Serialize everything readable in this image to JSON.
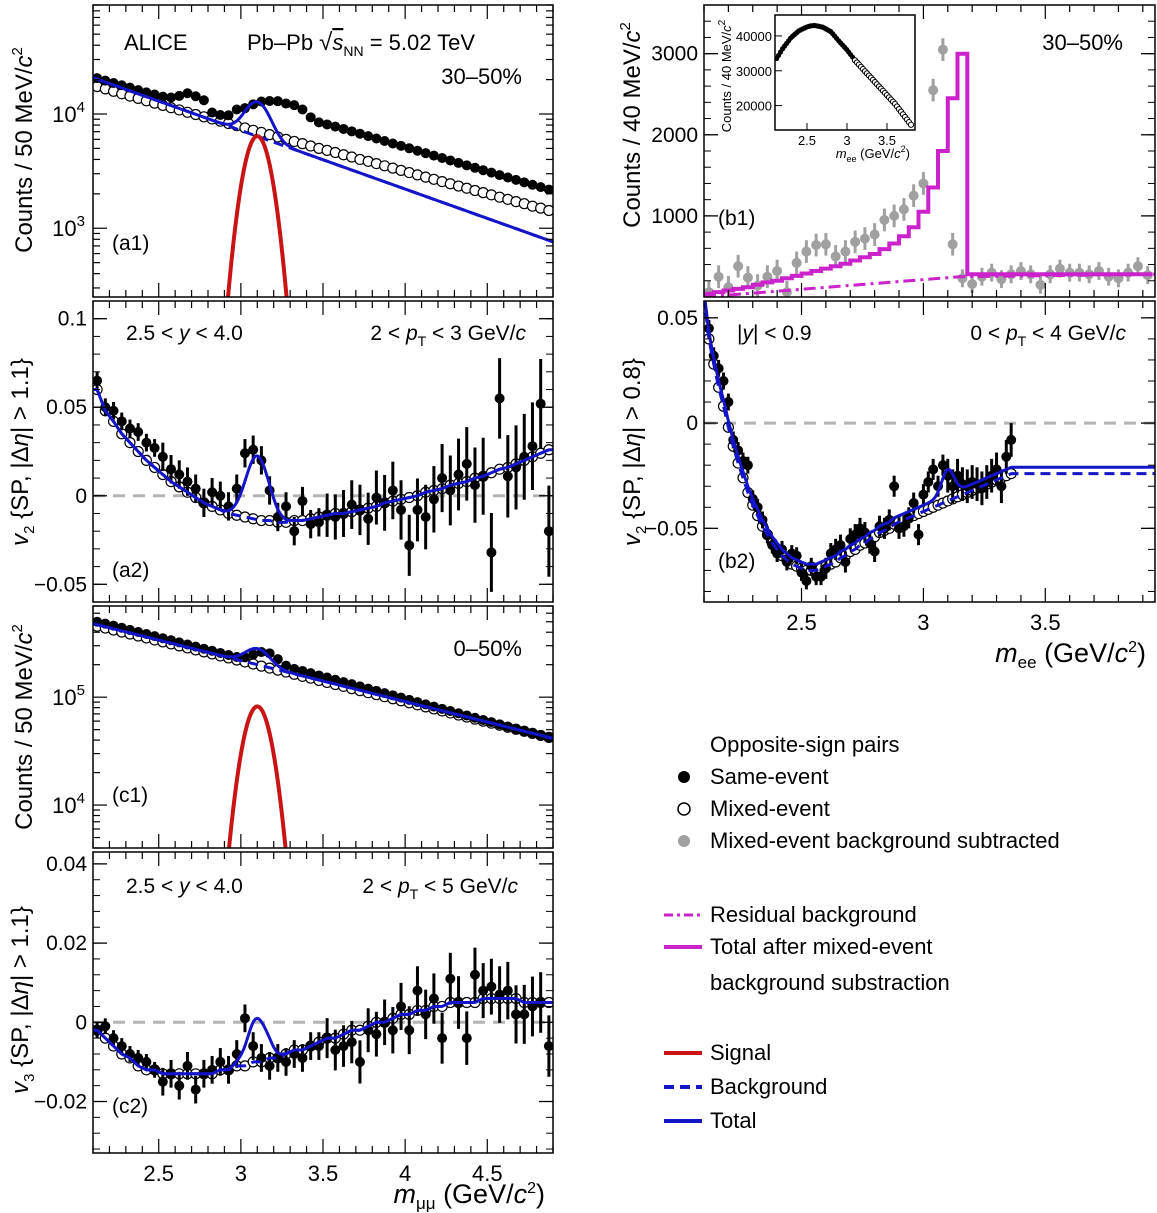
{
  "colors": {
    "signal": "#c81414",
    "background": "#1414c8",
    "total": "#1414c8",
    "magenta": "#cc22cc",
    "gray_points": "#a0a0a0",
    "zero_line": "#b4b4b4"
  },
  "legend": {
    "header": "Opposite-sign pairs",
    "same_event": "Same-event",
    "mixed_event": "Mixed-event",
    "mixed_bkg_sub": "Mixed-event background subtracted",
    "residual_bkg": "Residual background",
    "total_after_line1": "Total after mixed-event",
    "total_after_line2": "background substraction",
    "signal": "Signal",
    "background": "Background",
    "total": "Total"
  },
  "chart_data": [
    {
      "id": "a1",
      "type": "scatter",
      "panel_label": "(a1)",
      "experiment": "ALICE",
      "system": "Pb–Pb",
      "energy_label": "s",
      "energy_sub": "NN",
      "energy_value": "= 5.02 TeV",
      "centrality": "30–50%",
      "ylabel_main": "Counts / 50 MeV/",
      "ylabel_c": "c",
      "ylabel_exp": "2",
      "yscale": "log",
      "ylim": [
        250,
        90000
      ],
      "xlim": [
        2.1,
        4.9
      ],
      "yticks": [
        "10^3",
        "10^4"
      ],
      "same_event": {
        "mass_start": 2.125,
        "mass_step": 0.05,
        "counts": [
          20600,
          19600,
          18700,
          17850,
          17000,
          16200,
          15450,
          14800,
          14200,
          13950,
          14400,
          15200,
          14300,
          13200,
          10300,
          9800,
          9750,
          10950,
          11250,
          12150,
          12850,
          13000,
          12950,
          12350,
          11950,
          10950,
          9350,
          8450,
          8100,
          7750,
          7400,
          7050,
          6720,
          6400,
          6100,
          5800,
          5520,
          5260,
          5010,
          4770,
          4540,
          4320,
          4120,
          3920,
          3730,
          3550,
          3380,
          3220,
          3070,
          2920,
          2780,
          2650,
          2520,
          2400,
          2290,
          2180
        ]
      },
      "mixed_event": {
        "mass_start": 2.125,
        "mass_step": 0.05,
        "counts": [
          17400,
          16600,
          15800,
          15050,
          14350,
          13700,
          13050,
          12450,
          11900,
          11350,
          10850,
          10350,
          9900,
          9450,
          9050,
          8650,
          8250,
          7900,
          7550,
          7200,
          6900,
          6600,
          6300,
          6000,
          5750,
          5500,
          5250,
          5000,
          4800,
          4600,
          4400,
          4200,
          4000,
          3850,
          3680,
          3520,
          3360,
          3210,
          3070,
          2930,
          2800,
          2680,
          2560,
          2450,
          2340,
          2240,
          2140,
          2050,
          1960,
          1870,
          1790,
          1710,
          1640,
          1560,
          1500,
          1430
        ]
      },
      "signal_peak": {
        "mass": 3.1,
        "amplitude": 6400,
        "sigma": 0.07
      },
      "background_endpoints": [
        [
          2.1,
          20800
        ],
        [
          4.9,
          760
        ]
      ]
    },
    {
      "id": "a2",
      "type": "scatter",
      "panel_label": "(a2)",
      "rapidity": "2.5 < y < 4.0",
      "pt_range": "2 < p_T < 3 GeV/c",
      "ylabel": "v_2 {SP, |Δη| > 1.1}",
      "ylim": [
        -0.06,
        0.11
      ],
      "xlim": [
        2.1,
        4.9
      ],
      "yticks": [
        -0.05,
        0,
        0.05,
        0.1
      ],
      "same_event": {
        "mass_start": 2.125,
        "mass_step": 0.05,
        "values": [
          0.065,
          0.05,
          0.048,
          0.042,
          0.038,
          0.036,
          0.03,
          0.027,
          0.022,
          0.015,
          0.012,
          0.008,
          0.004,
          -0.004,
          0.002,
          0.0,
          -0.006,
          0.004,
          0.024,
          0.026,
          0.02,
          0.003,
          -0.012,
          -0.006,
          -0.02,
          -0.003,
          -0.016,
          -0.015,
          -0.011,
          -0.012,
          -0.01,
          -0.005,
          -0.008,
          -0.013,
          -0.001,
          -0.004,
          0.003,
          -0.008,
          -0.028,
          -0.008,
          -0.012,
          -0.002,
          0.01,
          0.003,
          0.012,
          0.018,
          0.006,
          0.011,
          -0.032,
          0.055,
          0.011,
          0.016,
          0.022,
          0.028,
          0.052,
          -0.02
        ]
      },
      "mixed_event": {
        "mass_start": 2.125,
        "mass_step": 0.05,
        "values": [
          0.06,
          0.048,
          0.042,
          0.035,
          0.03,
          0.025,
          0.02,
          0.016,
          0.012,
          0.008,
          0.005,
          0.002,
          -0.001,
          -0.004,
          -0.006,
          -0.008,
          -0.01,
          -0.011,
          -0.012,
          -0.013,
          -0.014,
          -0.014,
          -0.015,
          -0.015,
          -0.014,
          -0.014,
          -0.013,
          -0.012,
          -0.011,
          -0.01,
          -0.01,
          -0.009,
          -0.008,
          -0.007,
          -0.006,
          -0.004,
          -0.003,
          -0.002,
          -0.001,
          0.0,
          0.002,
          0.003,
          0.004,
          0.006,
          0.007,
          0.008,
          0.01,
          0.011,
          0.013,
          0.015,
          0.016,
          0.018,
          0.02,
          0.022,
          0.024,
          0.026
        ]
      },
      "signal_peak": {
        "mass": 3.1,
        "amplitude": 0.036,
        "sigma": 0.07
      }
    },
    {
      "id": "c1",
      "type": "scatter",
      "panel_label": "(c1)",
      "centrality": "0–50%",
      "ylabel_main": "Counts / 50 MeV/",
      "ylabel_c": "c",
      "ylabel_exp": "2",
      "yscale": "log",
      "ylim": [
        4000,
        700000
      ],
      "xlim": [
        2.1,
        4.9
      ],
      "yticks": [
        "10^4",
        "10^5"
      ],
      "same_event": {
        "mass_start": 2.125,
        "mass_step": 0.05,
        "counts": [
          500000,
          480000,
          460000,
          440000,
          420000,
          402000,
          385000,
          368000,
          352000,
          337000,
          322000,
          308000,
          294000,
          281000,
          269000,
          257000,
          246000,
          236000,
          234000,
          248000,
          262000,
          255000,
          225000,
          196000,
          183000,
          175000,
          167000,
          159000,
          152000,
          145000,
          138000,
          132000,
          126000,
          120000,
          114500,
          109000,
          104000,
          99000,
          94500,
          90000,
          85800,
          81800,
          78000,
          74400,
          71000,
          67700,
          64500,
          61500,
          58700,
          56000,
          53400,
          50900,
          48500,
          46300,
          44100,
          42000
        ]
      },
      "mixed_event": {
        "mass_start": 2.125,
        "mass_step": 0.05,
        "counts": [
          455000,
          437000,
          419000,
          402000,
          385000,
          369000,
          354000,
          339000,
          325000,
          312000,
          299000,
          286000,
          274000,
          263000,
          252000,
          241000,
          231000,
          221000,
          212000,
          203000,
          194000,
          186000,
          178000,
          171000,
          163000,
          156000,
          150000,
          143000,
          137000,
          131000,
          126000,
          120000,
          115000,
          110000,
          105500,
          101000,
          96700,
          92600,
          88700,
          84900,
          81300,
          77800,
          74500,
          71400,
          68300,
          65400,
          62600,
          60000,
          57400,
          55000,
          52600,
          50400,
          48300,
          46200,
          44200,
          42400
        ]
      },
      "signal_peak": {
        "mass": 3.1,
        "amplitude": 82000,
        "sigma": 0.07
      },
      "background_endpoints": [
        [
          2.1,
          480000
        ],
        [
          4.9,
          41500
        ]
      ]
    },
    {
      "id": "c2",
      "type": "scatter",
      "panel_label": "(c2)",
      "rapidity": "2.5 < y < 4.0",
      "pt_range": "2 < p_T < 5 GeV/c",
      "ylabel": "v_3 {SP, |Δη| > 1.1}",
      "ylim": [
        -0.033,
        0.043
      ],
      "xlim": [
        2.1,
        4.9
      ],
      "yticks": [
        -0.02,
        0,
        0.02,
        0.04
      ],
      "same_event": {
        "mass_start": 2.125,
        "mass_step": 0.05,
        "values": [
          -0.002,
          -0.001,
          -0.004,
          -0.006,
          -0.008,
          -0.009,
          -0.01,
          -0.012,
          -0.015,
          -0.013,
          -0.016,
          -0.011,
          -0.017,
          -0.013,
          -0.012,
          -0.01,
          -0.012,
          -0.008,
          0.001,
          -0.006,
          -0.009,
          -0.011,
          -0.009,
          -0.01,
          -0.008,
          -0.009,
          -0.006,
          -0.006,
          -0.004,
          -0.007,
          -0.006,
          -0.005,
          -0.01,
          -0.002,
          -0.003,
          0.0,
          -0.002,
          0.004,
          -0.002,
          0.008,
          0.002,
          0.006,
          -0.004,
          0.011,
          0.005,
          -0.004,
          0.012,
          0.008,
          0.009,
          0.007,
          0.008,
          0.002,
          0.002,
          0.004,
          0.005,
          -0.006
        ]
      },
      "mixed_event": {
        "mass_start": 2.125,
        "mass_step": 0.05,
        "values": [
          -0.002,
          -0.004,
          -0.006,
          -0.008,
          -0.009,
          -0.011,
          -0.012,
          -0.012,
          -0.013,
          -0.013,
          -0.013,
          -0.013,
          -0.013,
          -0.013,
          -0.013,
          -0.012,
          -0.012,
          -0.011,
          -0.011,
          -0.01,
          -0.01,
          -0.009,
          -0.009,
          -0.008,
          -0.007,
          -0.007,
          -0.006,
          -0.005,
          -0.004,
          -0.004,
          -0.003,
          -0.002,
          -0.002,
          -0.001,
          0.0,
          0.0,
          0.001,
          0.002,
          0.002,
          0.003,
          0.003,
          0.004,
          0.004,
          0.005,
          0.005,
          0.005,
          0.005,
          0.006,
          0.006,
          0.006,
          0.006,
          0.006,
          0.005,
          0.005,
          0.005,
          0.005
        ]
      },
      "signal_peak": {
        "mass": 3.1,
        "amplitude": 0.011,
        "sigma": 0.06
      }
    },
    {
      "id": "b1",
      "type": "scatter",
      "panel_label": "(b1)",
      "centrality": "30–50%",
      "ylabel_main": "Counts / 40 MeV/",
      "ylabel_c": "c",
      "ylabel_exp": "2",
      "ylim": [
        0,
        3600
      ],
      "xlim": [
        2.1,
        3.95
      ],
      "yticks": [
        1000,
        2000,
        3000
      ],
      "bkg_subtracted": {
        "mass_start": 2.12,
        "mass_step": 0.04,
        "counts": [
          60,
          250,
          120,
          380,
          240,
          140,
          250,
          320,
          60,
          420,
          560,
          640,
          650,
          500,
          560,
          680,
          720,
          770,
          950,
          1000,
          1080,
          1250,
          1400,
          2550,
          3050,
          650,
          230,
          160,
          250,
          300,
          220,
          280,
          320,
          280,
          150,
          280,
          350,
          300,
          300,
          280,
          320,
          250,
          230,
          300,
          380,
          270
        ]
      },
      "total_after_sub": {
        "edges_start": 2.1,
        "edges_step": 0.04,
        "counts": [
          40,
          60,
          80,
          100,
          120,
          150,
          180,
          200,
          230,
          260,
          290,
          320,
          350,
          380,
          410,
          450,
          490,
          530,
          590,
          660,
          750,
          860,
          1050,
          1350,
          1800,
          2450,
          3000,
          280,
          280,
          280,
          280,
          280,
          280,
          280,
          280,
          280,
          280,
          280,
          280,
          280,
          280,
          280,
          280,
          280,
          280,
          280
        ]
      },
      "residual_bkg_endpoints": [
        [
          2.1,
          0
        ],
        [
          3.15,
          250
        ],
        [
          3.95,
          280
        ]
      ],
      "inset": {
        "ylabel_main": "Counts / 40 MeV/",
        "ylabel_c": "c",
        "ylabel_exp": "2",
        "xlabel_main": "m",
        "xlabel_sub": "ee",
        "xlabel_unit": "(GeV/",
        "xlabel_c": "c",
        "xlabel_exp": "2",
        "xlim": [
          2.1,
          3.85
        ],
        "ylim": [
          13000,
          46000
        ],
        "xticks": [
          2.5,
          3,
          3.5
        ],
        "yticks": [
          20000,
          30000,
          40000
        ],
        "same_event": {
          "mass_start": 2.12,
          "mass_step": 0.025,
          "counts_at": [
            [
              2.12,
              33500
            ],
            [
              2.2,
              36500
            ],
            [
              2.3,
              39500
            ],
            [
              2.4,
              41500
            ],
            [
              2.5,
              42600
            ],
            [
              2.55,
              42900
            ],
            [
              2.6,
              43000
            ],
            [
              2.7,
              42500
            ],
            [
              2.8,
              41200
            ],
            [
              2.9,
              38500
            ],
            [
              3.0,
              36000
            ],
            [
              3.05,
              34500
            ],
            [
              3.1,
              33000
            ]
          ]
        },
        "mixed_event": {
          "counts_at": [
            [
              3.1,
              33000
            ],
            [
              3.2,
              30500
            ],
            [
              3.3,
              28000
            ],
            [
              3.4,
              25500
            ],
            [
              3.5,
              23000
            ],
            [
              3.6,
              20500
            ],
            [
              3.7,
              17500
            ],
            [
              3.8,
              14500
            ]
          ]
        }
      }
    },
    {
      "id": "b2",
      "type": "scatter",
      "panel_label": "(b2)",
      "rapidity": "|y| < 0.9",
      "pt_range": "0 < p_T < 4 GeV/c",
      "ylabel": "v_2 {SP, |Δη| > 0.8}",
      "ylim": [
        -0.085,
        0.058
      ],
      "xlim": [
        2.1,
        3.95
      ],
      "xticks": [
        2.5,
        3,
        3.5
      ],
      "yticks": [
        -0.05,
        0,
        0.05
      ],
      "xlabel_main": "m",
      "xlabel_sub": "ee",
      "xlabel_unit": "(GeV/",
      "xlabel_c": "c",
      "xlabel_exp": "2",
      "same_event": {
        "mass_start": 2.12,
        "mass_step": 0.02,
        "values": [
          0.045,
          0.032,
          0.026,
          0.02,
          0.01,
          -0.008,
          -0.013,
          -0.018,
          -0.02,
          -0.036,
          -0.04,
          -0.046,
          -0.053,
          -0.058,
          -0.062,
          -0.06,
          -0.066,
          -0.062,
          -0.063,
          -0.071,
          -0.075,
          -0.068,
          -0.073,
          -0.073,
          -0.069,
          -0.062,
          -0.06,
          -0.058,
          -0.066,
          -0.055,
          -0.053,
          -0.05,
          -0.052,
          -0.057,
          -0.061,
          -0.049,
          -0.05,
          -0.046,
          -0.03,
          -0.05,
          -0.049,
          -0.045,
          -0.038,
          -0.053,
          -0.034,
          -0.028,
          -0.022,
          -0.03,
          -0.02,
          -0.025,
          -0.03,
          -0.025,
          -0.029,
          -0.03,
          -0.028,
          -0.029,
          -0.031,
          -0.028,
          -0.025,
          -0.022,
          -0.03,
          -0.016,
          -0.008
        ]
      },
      "mixed_event": {
        "mass_start": 2.12,
        "mass_step": 0.02,
        "values": [
          0.04,
          0.028,
          0.017,
          0.008,
          -0.002,
          -0.011,
          -0.019,
          -0.026,
          -0.033,
          -0.039,
          -0.044,
          -0.049,
          -0.053,
          -0.057,
          -0.06,
          -0.063,
          -0.065,
          -0.067,
          -0.068,
          -0.069,
          -0.07,
          -0.07,
          -0.07,
          -0.069,
          -0.068,
          -0.067,
          -0.066,
          -0.064,
          -0.063,
          -0.061,
          -0.06,
          -0.058,
          -0.057,
          -0.055,
          -0.054,
          -0.052,
          -0.051,
          -0.05,
          -0.048,
          -0.047,
          -0.046,
          -0.045,
          -0.044,
          -0.043,
          -0.042,
          -0.041,
          -0.04,
          -0.039,
          -0.038,
          -0.037,
          -0.036,
          -0.035,
          -0.034,
          -0.033,
          -0.032,
          -0.031,
          -0.03,
          -0.029,
          -0.028,
          -0.027,
          -0.026,
          -0.025,
          -0.024
        ]
      },
      "signal_peak": {
        "mass": 3.1,
        "amplitude": 0.012,
        "sigma": 0.025
      }
    }
  ],
  "axes_titles": {
    "mumu_main": "m",
    "mumu_sub": "μμ",
    "mumu_unit": "(GeV/",
    "mumu_c": "c",
    "mumu_exp": "2",
    "mumu_close": ")",
    "ee_close": ")"
  },
  "xticks_left": [
    2.5,
    3,
    3.5,
    4,
    4.5
  ]
}
